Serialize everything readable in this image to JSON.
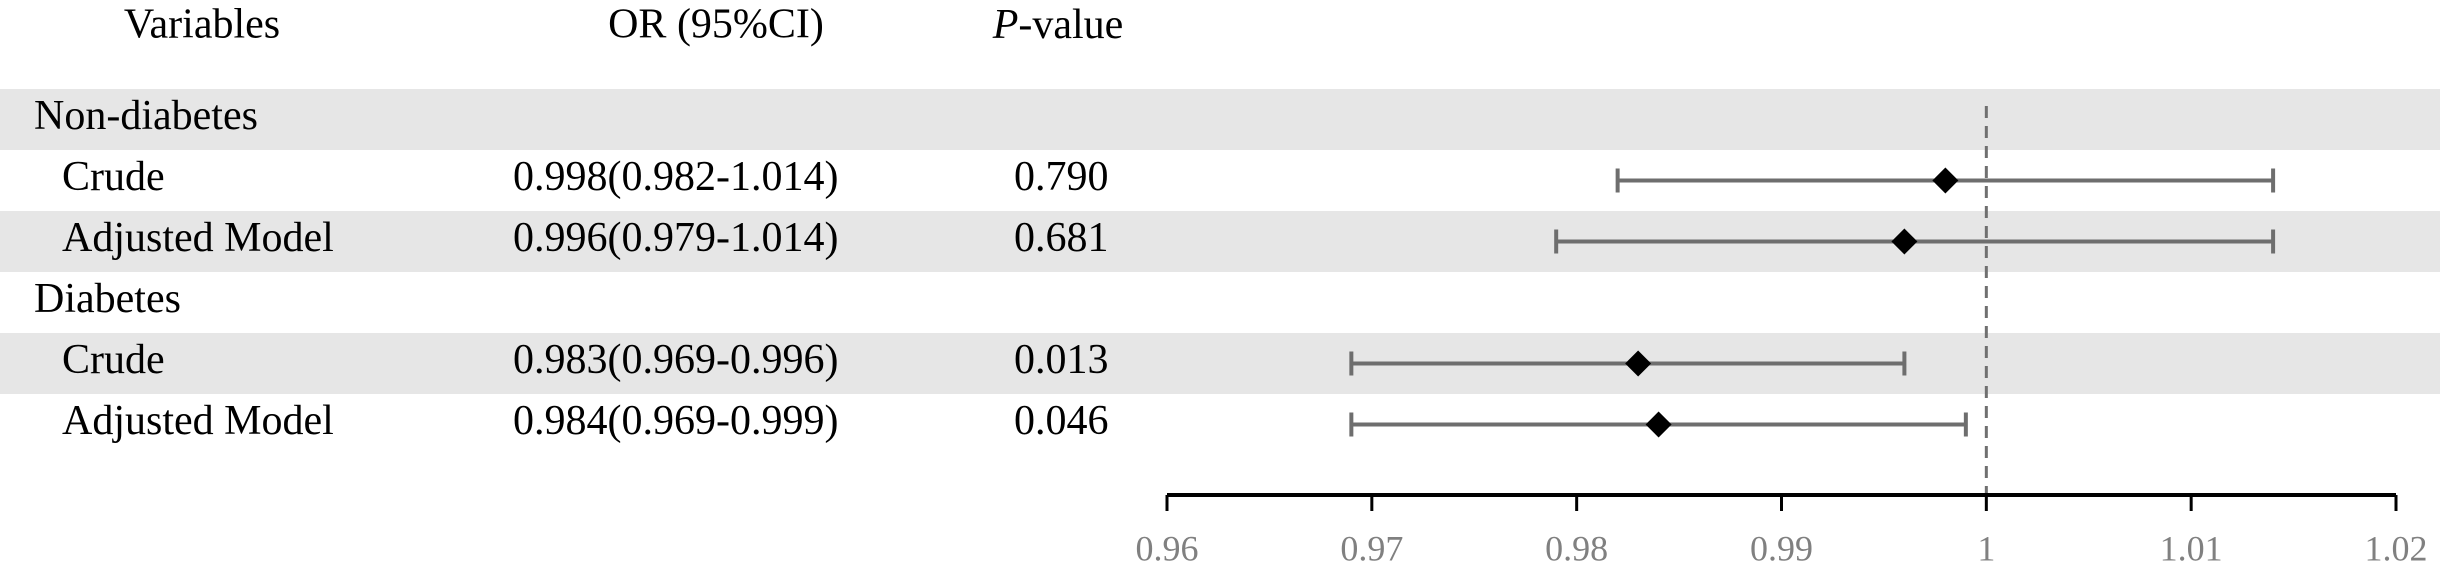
{
  "chart_data": {
    "type": "forest",
    "headers": {
      "variables": "Variables",
      "or_ci": "OR (95%CI)",
      "p_italic": "P",
      "p_rest": "-value"
    },
    "groups": [
      {
        "name": "Non-diabetes",
        "rows": [
          {
            "label": "Crude",
            "or_ci": "0.998(0.982-1.014)",
            "p": "0.790",
            "or": 0.998,
            "lower": 0.982,
            "upper": 1.014
          },
          {
            "label": "Adjusted Model",
            "or_ci": "0.996(0.979-1.014)",
            "p": "0.681",
            "or": 0.996,
            "lower": 0.979,
            "upper": 1.014
          }
        ]
      },
      {
        "name": "Diabetes",
        "rows": [
          {
            "label": "Crude",
            "or_ci": "0.983(0.969-0.996)",
            "p": "0.013",
            "or": 0.983,
            "lower": 0.969,
            "upper": 0.996
          },
          {
            "label": "Adjusted Model",
            "or_ci": "0.984(0.969-0.999)",
            "p": "0.046",
            "or": 0.984,
            "lower": 0.969,
            "upper": 0.999
          }
        ]
      }
    ],
    "xlim": [
      0.96,
      1.02
    ],
    "xticks": [
      0.96,
      0.97,
      0.98,
      0.99,
      1,
      1.01,
      1.02
    ],
    "ref_line": 1,
    "ci_color": "#6e6e6e",
    "marker_color": "#000000",
    "shade_color": "#e6e6e6"
  }
}
